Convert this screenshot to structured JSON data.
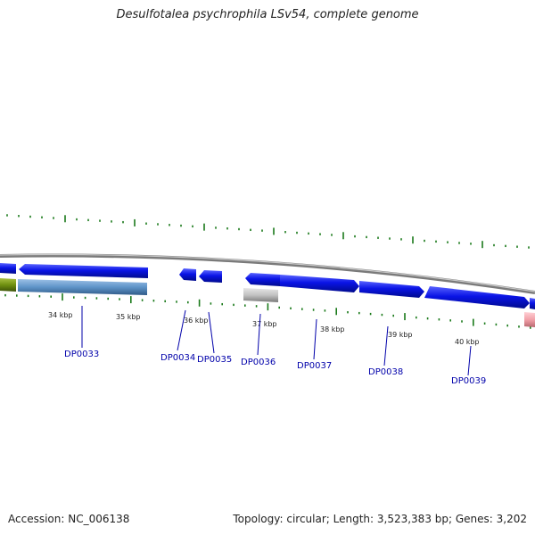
{
  "title": "Desulfotalea psychrophila LSv54, complete genome",
  "footer": {
    "accession": "Accession: NC_006138",
    "summary": "Topology: circular; Length: 3,523,383 bp; Genes: 3,202"
  },
  "colors": {
    "gene_blue": "#0a14e6",
    "backbone": "#8a8a8a",
    "tick_green": "#1a7a1a",
    "label_blue": "#0000aa",
    "steel": "#5f94c8",
    "olive": "#6f8f10",
    "grey_gene": "#bdbdbd",
    "pink_gene": "#f2a0a8"
  },
  "scale": {
    "kbp_labels": [
      "34 kbp",
      "35 kbp",
      "36 kbp",
      "37 kbp",
      "38 kbp",
      "39 kbp",
      "40 kbp"
    ]
  },
  "genes": [
    {
      "label": "DP0033"
    },
    {
      "label": "DP0034"
    },
    {
      "label": "DP0035"
    },
    {
      "label": "DP0036"
    },
    {
      "label": "DP0037"
    },
    {
      "label": "DP0038"
    },
    {
      "label": "DP0039"
    }
  ]
}
